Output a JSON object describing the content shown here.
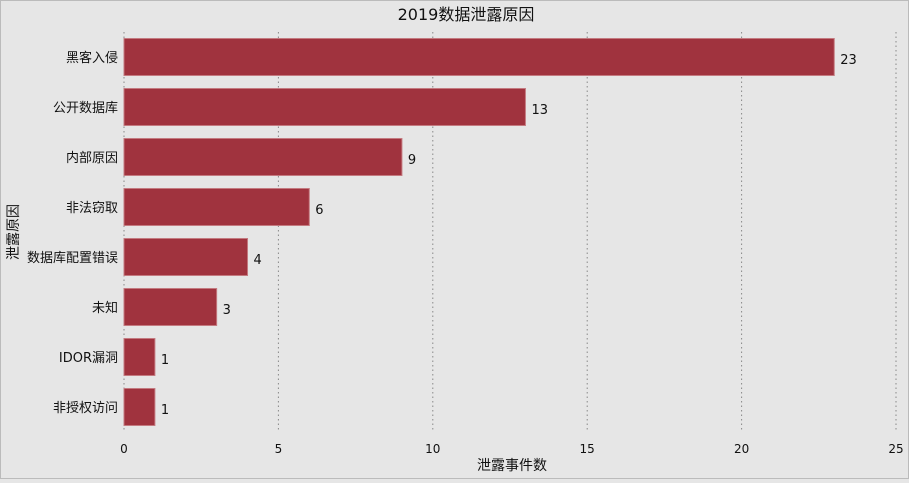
{
  "chart_data": {
    "type": "bar",
    "orientation": "horizontal",
    "title": "2019数据泄露原因",
    "xlabel": "泄露事件数",
    "ylabel": "泄露原因",
    "categories": [
      "黑客入侵",
      "公开数据库",
      "内部原因",
      "非法窃取",
      "数据库配置错误",
      "未知",
      "IDOR漏洞",
      "非授权访问"
    ],
    "values": [
      23,
      13,
      9,
      6,
      4,
      3,
      1,
      1
    ],
    "xlim": [
      0,
      25
    ],
    "xticks": [
      0,
      5,
      10,
      15,
      20,
      25
    ],
    "grid": "vertical dotted",
    "bar_color": "#a0333e",
    "background": "#e6e6e6"
  }
}
